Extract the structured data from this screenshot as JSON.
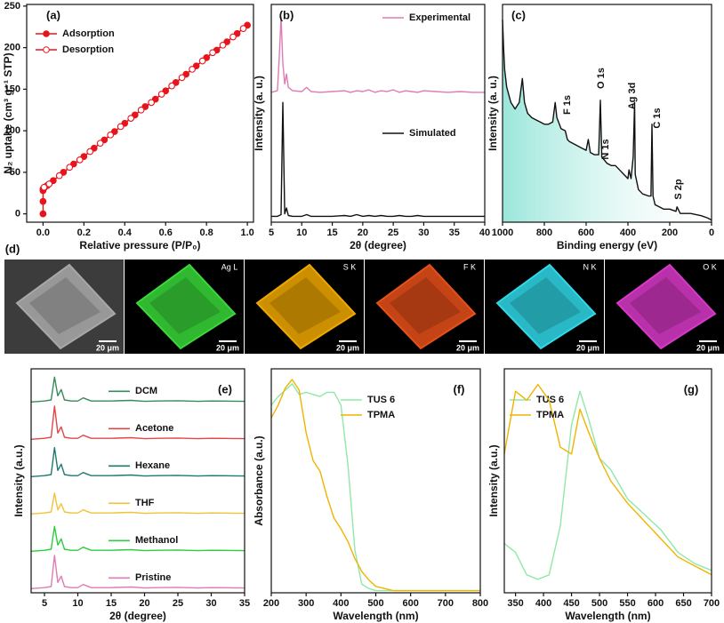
{
  "chart_data": [
    {
      "type": "line",
      "panel_label": "(a)",
      "xlabel": "Relative pressure (P/P₀)",
      "ylabel": "N₂ uptake (cm³ g⁻¹ STP)",
      "xlim": [
        -0.08,
        1.03
      ],
      "ylim": [
        -10,
        252
      ],
      "xticks": [
        {
          "value": 0,
          "label": "0.0"
        },
        0.2,
        0.4,
        0.6,
        0.8,
        {
          "value": 1,
          "label": "1.0"
        }
      ],
      "yticks": [
        0,
        50,
        100,
        150,
        200,
        250
      ],
      "markers": true,
      "series": [
        {
          "name": "Adsorption",
          "color": "#e8141c",
          "filled": true,
          "x": [
            0,
            0,
            0,
            0,
            0.005,
            0.02,
            0.05,
            0.1,
            0.15,
            0.2,
            0.25,
            0.3,
            0.35,
            0.4,
            0.45,
            0.5,
            0.55,
            0.6,
            0.65,
            0.7,
            0.75,
            0.8,
            0.85,
            0.9,
            0.95,
            1.0
          ],
          "values": [
            0,
            15,
            28,
            30,
            31,
            34,
            40,
            50,
            60,
            69,
            79,
            89,
            99,
            109,
            119,
            129,
            138,
            148,
            158,
            168,
            178,
            188,
            197,
            207,
            217,
            227
          ]
        },
        {
          "name": "Desorption",
          "color": "#e8141c",
          "filled": false,
          "x": [
            0.98,
            0.93,
            0.88,
            0.83,
            0.78,
            0.73,
            0.68,
            0.63,
            0.58,
            0.53,
            0.48,
            0.43,
            0.38,
            0.33,
            0.28,
            0.23,
            0.18,
            0.13,
            0.08,
            0.03,
            0.005
          ],
          "values": [
            223,
            213,
            203,
            194,
            184,
            174,
            164,
            154,
            144,
            134,
            125,
            115,
            105,
            95,
            85,
            75,
            65,
            56,
            46,
            36,
            32
          ]
        }
      ]
    },
    {
      "type": "line",
      "panel_label": "(b)",
      "xlabel": "2θ (degree)",
      "ylabel": "Intensity (a. u.)",
      "xlim": [
        5,
        40
      ],
      "ylim": [
        -5,
        255
      ],
      "xticks": [
        5,
        10,
        15,
        20,
        25,
        30,
        35,
        40
      ],
      "x": [
        5,
        6,
        6.3,
        6.6,
        6.9,
        7.2,
        7.5,
        7.8,
        8.5,
        10,
        10.8,
        11.5,
        13,
        15,
        17,
        18,
        19,
        20,
        21,
        22,
        23,
        24,
        25,
        26,
        27,
        28,
        29,
        30,
        32,
        34,
        36,
        38,
        40
      ],
      "series": [
        {
          "name": "Experimental",
          "color": "#e07bb5",
          "values": [
            150,
            152,
            190,
            240,
            185,
            160,
            172,
            156,
            152,
            151,
            156,
            151,
            150,
            151,
            152,
            150,
            152,
            151,
            153,
            150,
            152,
            151,
            153,
            150,
            152,
            151,
            150,
            152,
            151,
            150,
            151,
            150,
            150
          ]
        },
        {
          "name": "Simulated",
          "color": "#111111",
          "values": [
            2,
            2,
            3,
            4,
            138,
            5,
            12,
            3,
            2,
            2,
            4,
            2,
            2,
            2,
            3,
            2,
            4,
            2,
            3,
            2,
            3,
            2,
            2,
            3,
            2,
            2,
            3,
            2,
            2,
            2,
            2,
            2,
            2
          ]
        }
      ]
    },
    {
      "type": "area",
      "panel_label": "(c)",
      "xlabel": "Binding energy (eV)",
      "ylabel": "Intensity (a. u.)",
      "xlim": [
        1000,
        0
      ],
      "ylim": [
        0,
        100
      ],
      "xticks": [
        1000,
        800,
        600,
        400,
        200,
        0
      ],
      "annotations": [
        "F 1s",
        "O 1s",
        "Ag 3d",
        "N 1s",
        "C 1s",
        "S 2p"
      ],
      "x": [
        1000,
        995,
        990,
        980,
        960,
        940,
        920,
        905,
        895,
        880,
        860,
        840,
        820,
        800,
        780,
        760,
        748,
        740,
        720,
        700,
        690,
        680,
        660,
        640,
        620,
        600,
        590,
        580,
        560,
        540,
        532,
        525,
        500,
        480,
        460,
        440,
        420,
        400,
        395,
        385,
        375,
        368,
        365,
        350,
        330,
        300,
        290,
        285,
        280,
        270,
        250,
        230,
        200,
        170,
        165,
        150,
        100,
        50,
        20,
        0
      ],
      "series": [
        {
          "color": "#111111",
          "values": [
            93,
            80,
            70,
            62,
            55,
            52,
            55,
            66,
            55,
            50,
            48,
            47,
            46,
            45,
            45,
            46,
            55,
            48,
            43,
            42,
            38,
            37,
            36,
            35,
            34,
            33,
            38,
            32,
            31,
            31,
            56,
            30,
            27,
            26,
            26,
            24,
            22,
            20,
            24,
            20,
            30,
            55,
            22,
            15,
            13,
            12,
            12,
            45,
            12,
            8,
            7,
            6,
            6,
            5,
            7,
            4,
            4,
            3,
            2,
            1
          ]
        }
      ]
    },
    {
      "type": "line",
      "panel_label": "(e)",
      "xlabel": "2θ (degree)",
      "ylabel": "Intensity (a.u.)",
      "xlim": [
        3,
        35
      ],
      "ylim": [
        0,
        108
      ],
      "xticks": [
        5,
        10,
        15,
        20,
        25,
        30,
        35
      ],
      "x": [
        3,
        5,
        6,
        6.5,
        7,
        7.5,
        8,
        9,
        10,
        10.8,
        12,
        15,
        18,
        20,
        22,
        25,
        28,
        30,
        33,
        35
      ],
      "series": [
        {
          "name": "DCM",
          "color": "#3a8a5a",
          "values": [
            92,
            92.5,
            93,
            104,
            95,
            98,
            93,
            92.5,
            92.5,
            94,
            92.5,
            92.5,
            92.8,
            92.3,
            92.5,
            92.6,
            92.3,
            92.5,
            92.4,
            92.3
          ]
        },
        {
          "name": "Acetone",
          "color": "#e04848",
          "values": [
            74,
            74.5,
            75,
            90,
            77,
            80,
            75,
            74.5,
            74.5,
            76,
            74.5,
            74.5,
            74.8,
            74.3,
            74.5,
            74.6,
            74.3,
            74.5,
            74.4,
            74.3
          ]
        },
        {
          "name": "Hexane",
          "color": "#1f7a6e",
          "values": [
            56,
            56.5,
            57,
            70,
            59,
            62,
            57,
            56.5,
            56.5,
            58,
            56.5,
            56.5,
            56.8,
            56.3,
            56.5,
            56.6,
            56.3,
            56.5,
            56.4,
            56.3
          ]
        },
        {
          "name": "THF",
          "color": "#f2c23a",
          "values": [
            38,
            38.5,
            39,
            48,
            40,
            43,
            39,
            38.5,
            38.5,
            40,
            38.5,
            38.5,
            38.8,
            38.3,
            38.5,
            38.6,
            38.3,
            38.5,
            38.4,
            38.3
          ]
        },
        {
          "name": "Methanol",
          "color": "#2ecc40",
          "values": [
            20,
            20.5,
            21,
            32,
            23,
            26,
            21,
            20.5,
            20.5,
            22,
            20.5,
            20.5,
            20.8,
            20.3,
            20.5,
            20.6,
            20.3,
            20.5,
            20.4,
            20.3
          ]
        },
        {
          "name": "Pristine",
          "color": "#e07bb5",
          "values": [
            2,
            2.5,
            3,
            18,
            5,
            8,
            3,
            2.5,
            2.5,
            4,
            2.5,
            2.5,
            2.8,
            2.3,
            2.5,
            2.6,
            2.3,
            2.5,
            2.4,
            2.3
          ]
        }
      ]
    },
    {
      "type": "line",
      "panel_label": "(f)",
      "xlabel": "Wavelength (nm)",
      "ylabel": "Absorbance (a.u.)",
      "xlim": [
        200,
        800
      ],
      "ylim": [
        0,
        1.05
      ],
      "xticks": [
        200,
        300,
        400,
        500,
        600,
        700,
        800
      ],
      "x": [
        200,
        220,
        240,
        260,
        280,
        300,
        320,
        340,
        360,
        380,
        400,
        420,
        440,
        460,
        480,
        500,
        550,
        600,
        650,
        700,
        750,
        800
      ],
      "series": [
        {
          "name": "TUS 6",
          "color": "#90e8a8",
          "values": [
            0.88,
            0.92,
            0.95,
            0.98,
            0.93,
            0.94,
            0.93,
            0.92,
            0.94,
            0.94,
            0.88,
            0.6,
            0.2,
            0.04,
            0.02,
            0.01,
            0.01,
            0.01,
            0.01,
            0.01,
            0.01,
            0.01
          ]
        },
        {
          "name": "TPMA",
          "color": "#f0b400",
          "values": [
            0.82,
            0.88,
            0.96,
            1.0,
            0.95,
            0.75,
            0.62,
            0.57,
            0.45,
            0.35,
            0.3,
            0.24,
            0.16,
            0.1,
            0.06,
            0.03,
            0.01,
            0.01,
            0.01,
            0.01,
            0.01,
            0.01
          ]
        }
      ]
    },
    {
      "type": "line",
      "panel_label": "(g)",
      "xlabel": "Wavelength (nm)",
      "ylabel": "Intensity (a.u.)",
      "xlim": [
        330,
        700
      ],
      "ylim": [
        0,
        1
      ],
      "xticks": [
        350,
        400,
        450,
        500,
        550,
        600,
        650,
        700
      ],
      "x": [
        330,
        350,
        370,
        390,
        410,
        430,
        450,
        465,
        480,
        500,
        520,
        550,
        580,
        610,
        640,
        670,
        700
      ],
      "series": [
        {
          "name": "TUS 6",
          "color": "#90e8a8",
          "values": [
            0.22,
            0.18,
            0.08,
            0.06,
            0.08,
            0.3,
            0.75,
            0.9,
            0.78,
            0.6,
            0.55,
            0.42,
            0.35,
            0.28,
            0.18,
            0.13,
            0.1
          ]
        },
        {
          "name": "TPMA",
          "color": "#f0b400",
          "values": [
            0.62,
            0.9,
            0.86,
            0.93,
            0.86,
            0.65,
            0.62,
            0.82,
            0.72,
            0.6,
            0.5,
            0.4,
            0.32,
            0.24,
            0.16,
            0.12,
            0.08
          ]
        }
      ]
    }
  ],
  "micrographs": {
    "label": "(d)",
    "tiles": [
      {
        "color": "#a8a8a8",
        "scale": "20 μm"
      },
      {
        "element": "Ag L",
        "color": "#3ad83a",
        "scale": "20 μm"
      },
      {
        "element": "S K",
        "color": "#f0a800",
        "scale": "20 μm"
      },
      {
        "element": "F K",
        "color": "#e8501a",
        "scale": "20 μm"
      },
      {
        "element": "N K",
        "color": "#30d8e8",
        "scale": "20 μm"
      },
      {
        "element": "O K",
        "color": "#d838c8",
        "scale": "20 μm"
      }
    ]
  }
}
